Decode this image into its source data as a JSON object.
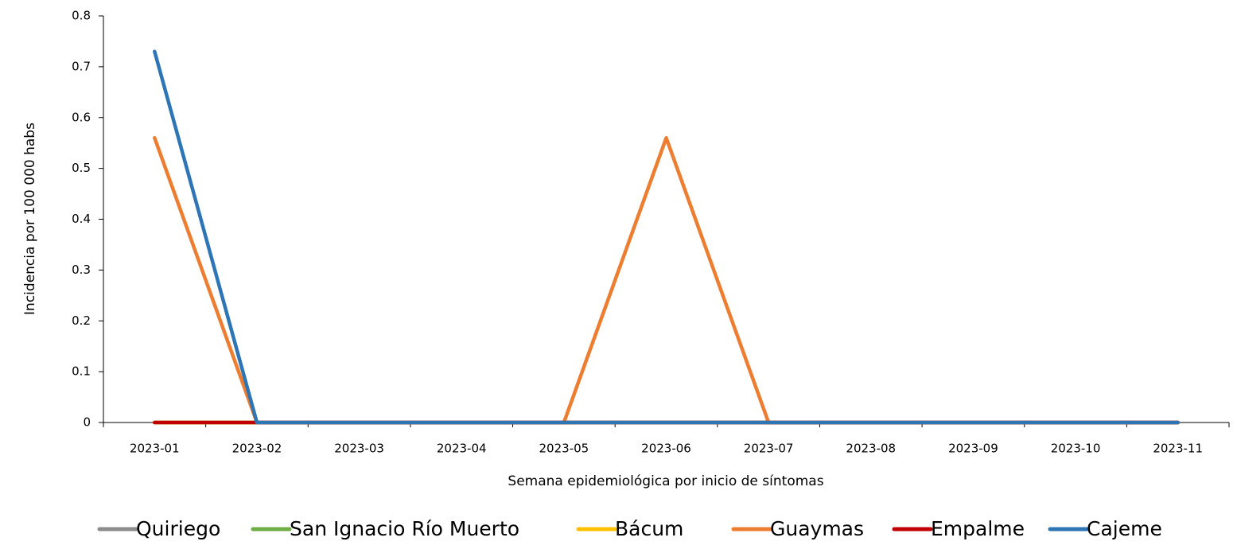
{
  "chart_data": {
    "type": "line",
    "x_label": "Semana epidemiológica por inicio de síntomas",
    "y_label": "Incidencia por 100 000 habs",
    "categories": [
      "2023-01",
      "2023-02",
      "2023-03",
      "2023-04",
      "2023-05",
      "2023-06",
      "2023-07",
      "2023-08",
      "2023-09",
      "2023-10",
      "2023-11"
    ],
    "series": [
      {
        "name": "Quiriego",
        "color": "#8c8c8c",
        "values": [
          0,
          0,
          0,
          0,
          0,
          0,
          0,
          0,
          0,
          0,
          0
        ]
      },
      {
        "name": "San Ignacio Río Muerto",
        "color": "#70ad47",
        "values": [
          0,
          0,
          0,
          0,
          0,
          0,
          0,
          0,
          0,
          0,
          0
        ]
      },
      {
        "name": "Bácum",
        "color": "#ffc000",
        "values": [
          0,
          0,
          0,
          0,
          0,
          0,
          0,
          0,
          0,
          0,
          0
        ]
      },
      {
        "name": "Guaymas",
        "color": "#ed7d31",
        "values": [
          0.56,
          0,
          0,
          0,
          0,
          0.56,
          0,
          0,
          0,
          0,
          0
        ]
      },
      {
        "name": "Empalme",
        "color": "#c00000",
        "values": [
          0,
          0,
          0,
          0,
          0,
          0,
          0,
          0,
          0,
          0,
          0
        ]
      },
      {
        "name": "Cajeme",
        "color": "#2e75b6",
        "values": [
          0.73,
          0,
          0,
          0,
          0,
          0,
          0,
          0,
          0,
          0,
          0
        ]
      }
    ],
    "ylim": [
      0,
      0.8
    ],
    "yticks": [
      0,
      0.1,
      0.2,
      0.3,
      0.4,
      0.5,
      0.6,
      0.7,
      0.8
    ],
    "grid": false,
    "legend": "bottom"
  }
}
